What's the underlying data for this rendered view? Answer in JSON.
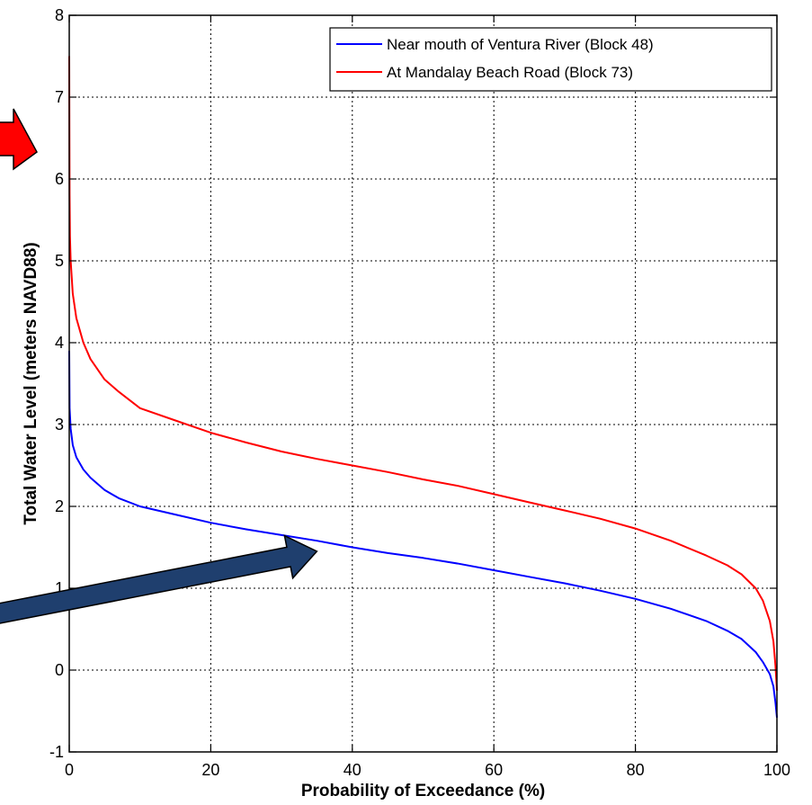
{
  "chart_data": {
    "type": "line",
    "title": "",
    "xlabel": "Probability of Exceedance (%)",
    "ylabel": "Total Water Level (meters NAVD88)",
    "xlim": [
      0,
      100
    ],
    "ylim": [
      -1,
      8
    ],
    "xticks": [
      0,
      20,
      40,
      60,
      80,
      100
    ],
    "yticks": [
      -1,
      0,
      1,
      2,
      3,
      4,
      5,
      6,
      7,
      8
    ],
    "grid": true,
    "legend_position": "top-right",
    "series": [
      {
        "name": "Near mouth of Ventura River (Block 48)",
        "color": "#0000ff",
        "x": [
          0,
          0.05,
          0.2,
          0.5,
          1,
          2,
          3,
          5,
          7,
          10,
          15,
          20,
          25,
          30,
          35,
          40,
          45,
          50,
          55,
          60,
          65,
          70,
          75,
          80,
          85,
          90,
          93,
          95,
          97,
          98,
          99,
          99.5,
          99.8,
          100
        ],
        "y": [
          3.9,
          3.2,
          2.95,
          2.75,
          2.6,
          2.45,
          2.35,
          2.2,
          2.1,
          2.0,
          1.9,
          1.8,
          1.72,
          1.65,
          1.58,
          1.5,
          1.43,
          1.37,
          1.3,
          1.22,
          1.14,
          1.06,
          0.97,
          0.87,
          0.75,
          0.6,
          0.48,
          0.38,
          0.22,
          0.1,
          -0.05,
          -0.2,
          -0.4,
          -0.58
        ]
      },
      {
        "name": "At Mandalay Beach Road (Block 73)",
        "color": "#ff0000",
        "x": [
          0,
          0.02,
          0.05,
          0.1,
          0.2,
          0.5,
          1,
          2,
          3,
          5,
          7,
          10,
          15,
          20,
          25,
          30,
          35,
          40,
          45,
          50,
          55,
          60,
          65,
          70,
          75,
          80,
          85,
          90,
          93,
          95,
          97,
          98,
          99,
          99.5,
          99.8,
          100
        ],
        "y": [
          7.5,
          6.6,
          5.8,
          5.3,
          5.0,
          4.6,
          4.3,
          4.0,
          3.8,
          3.55,
          3.4,
          3.2,
          3.05,
          2.9,
          2.78,
          2.67,
          2.58,
          2.5,
          2.42,
          2.33,
          2.25,
          2.15,
          2.05,
          1.95,
          1.85,
          1.73,
          1.58,
          1.4,
          1.28,
          1.17,
          1.0,
          0.85,
          0.6,
          0.35,
          0.05,
          -0.25
        ]
      }
    ]
  },
  "annotations": {
    "red_arrow_color": "#ff0000",
    "blue_arrow_color": "#1f3f6e"
  }
}
